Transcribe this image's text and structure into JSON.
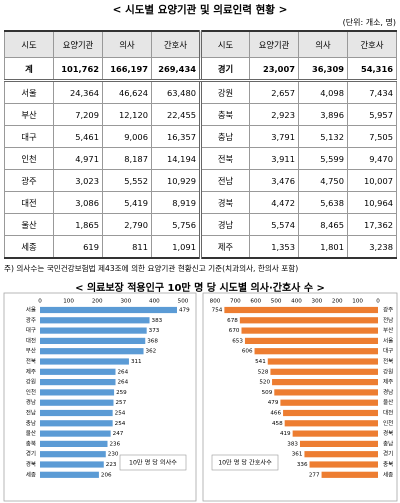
{
  "title": "< 시도별 요양기관 및 의료인력 현황 >",
  "unit_note": "(단위: 개소, 명)",
  "table": {
    "header": [
      "시도",
      "요양기관",
      "의사",
      "간호사",
      "시도",
      "요양기관",
      "의사",
      "간호사"
    ],
    "rows": [
      [
        "계",
        "101,762",
        "166,197",
        "269,434",
        "경기",
        "23,007",
        "36,309",
        "54,316"
      ],
      [
        "서울",
        "24,364",
        "46,624",
        "63,480",
        "강원",
        "2,657",
        "4,098",
        "7,434"
      ],
      [
        "부산",
        "7,209",
        "12,120",
        "22,455",
        "충북",
        "2,923",
        "3,896",
        "5,957"
      ],
      [
        "대구",
        "5,461",
        "9,006",
        "16,357",
        "충남",
        "3,791",
        "5,132",
        "7,505"
      ],
      [
        "인천",
        "4,971",
        "8,187",
        "14,194",
        "전북",
        "3,911",
        "5,599",
        "9,470"
      ],
      [
        "광주",
        "3,023",
        "5,552",
        "10,929",
        "전남",
        "3,476",
        "4,750",
        "10,007"
      ],
      [
        "대전",
        "3,086",
        "5,419",
        "8,919",
        "경북",
        "4,472",
        "5,638",
        "10,964"
      ],
      [
        "울산",
        "1,865",
        "2,790",
        "5,756",
        "경남",
        "5,574",
        "8,465",
        "17,362"
      ],
      [
        "세종",
        "619",
        "811",
        "1,091",
        "제주",
        "1,353",
        "1,801",
        "3,238"
      ]
    ]
  },
  "footnote": "주) 의사수는 국민건강보험법 제43조에 의한 요양기관 현황신고 기준(치과의사, 한의사 포함)",
  "section_title": "< 의료보장 적용인구 10만 명 당 시도별 의사·간호사 수 >",
  "chart_data": [
    {
      "type": "bar",
      "orientation": "horizontal",
      "categories": [
        "서울",
        "광주",
        "대구",
        "대전",
        "부산",
        "전북",
        "제주",
        "강원",
        "인천",
        "경남",
        "전남",
        "충남",
        "울산",
        "충북",
        "경기",
        "경북",
        "세종"
      ],
      "series": [
        {
          "name": "10만 명 당 의사수",
          "color": "#5b9bd5",
          "values": [
            479,
            383,
            373,
            368,
            362,
            311,
            264,
            264,
            259,
            257,
            254,
            254,
            247,
            236,
            230,
            223,
            206
          ]
        }
      ],
      "xlim": [
        0,
        500
      ],
      "xticks": [
        0,
        100,
        200,
        300,
        400,
        500
      ],
      "reversed": false
    },
    {
      "type": "bar",
      "orientation": "horizontal",
      "categories": [
        "광주",
        "전남",
        "부산",
        "서울",
        "대구",
        "전북",
        "강원",
        "제주",
        "경남",
        "울산",
        "대전",
        "인천",
        "경북",
        "충남",
        "경기",
        "충북",
        "세종"
      ],
      "series": [
        {
          "name": "10만 명 당 간호사수",
          "color": "#ed7d31",
          "values": [
            754,
            678,
            670,
            653,
            606,
            541,
            528,
            520,
            509,
            479,
            466,
            458,
            419,
            383,
            361,
            336,
            277
          ]
        }
      ],
      "xlim": [
        0,
        800
      ],
      "xticks": [
        0,
        100,
        200,
        300,
        400,
        500,
        600,
        700,
        800
      ],
      "reversed": true
    }
  ]
}
